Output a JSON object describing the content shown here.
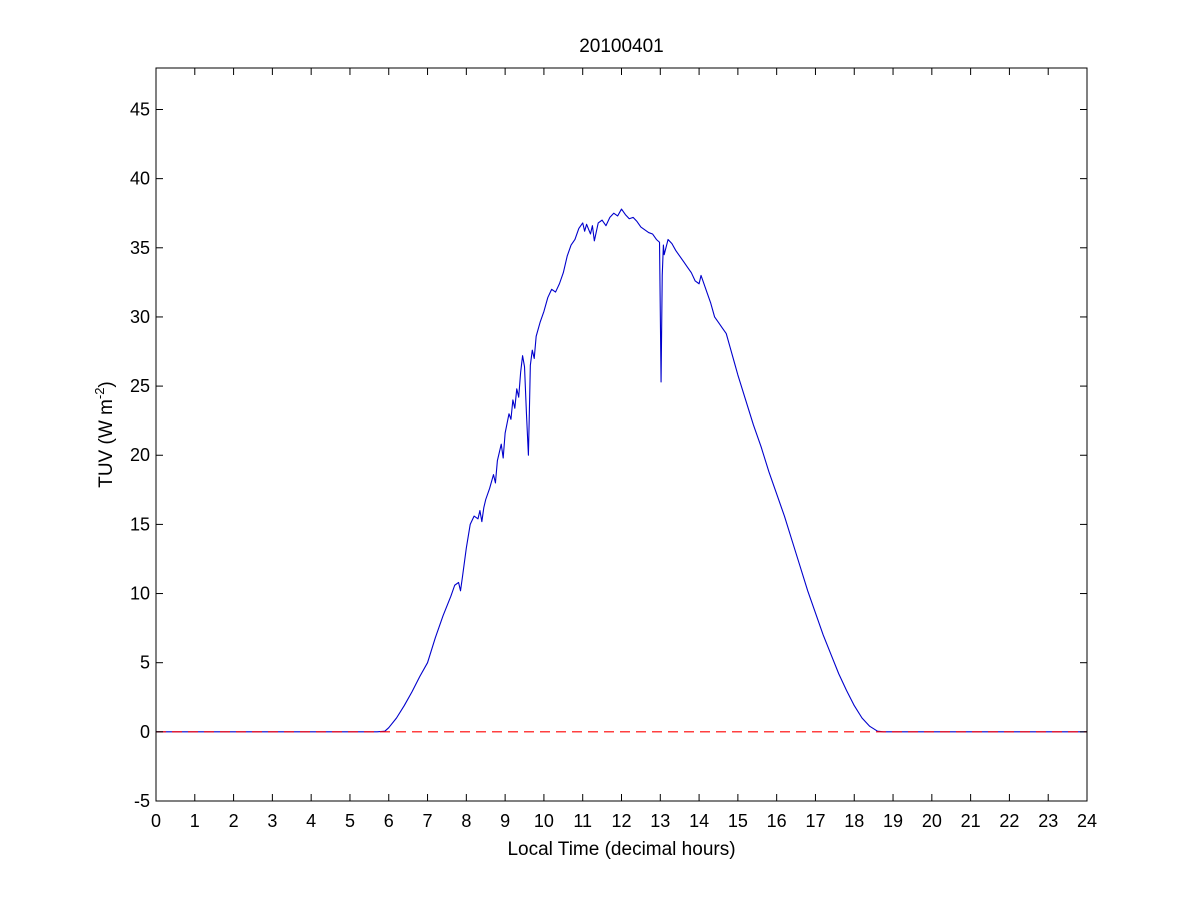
{
  "chart_data": {
    "type": "line",
    "title": "20100401",
    "xlabel": "Local Time (decimal hours)",
    "ylabel": "TUV (W m",
    "ylabel_superscript": "-2",
    "ylabel_suffix": ")",
    "xlim": [
      0,
      24
    ],
    "ylim": [
      -5,
      48
    ],
    "xticks": [
      0,
      1,
      2,
      3,
      4,
      5,
      6,
      7,
      8,
      9,
      10,
      11,
      12,
      13,
      14,
      15,
      16,
      17,
      18,
      19,
      20,
      21,
      22,
      23,
      24
    ],
    "yticks": [
      -5,
      0,
      5,
      10,
      15,
      20,
      25,
      30,
      35,
      40,
      45
    ],
    "grid": false,
    "series": [
      {
        "color": "#0000cc",
        "style": "solid",
        "points": [
          [
            0,
            0
          ],
          [
            5.7,
            0
          ],
          [
            5.9,
            0.05
          ],
          [
            6.0,
            0.3
          ],
          [
            6.2,
            1.0
          ],
          [
            6.4,
            1.9
          ],
          [
            6.6,
            2.9
          ],
          [
            6.8,
            4.0
          ],
          [
            7.0,
            5.0
          ],
          [
            7.2,
            6.8
          ],
          [
            7.4,
            8.4
          ],
          [
            7.6,
            9.8
          ],
          [
            7.7,
            10.6
          ],
          [
            7.8,
            10.8
          ],
          [
            7.85,
            10.2
          ],
          [
            7.9,
            11.2
          ],
          [
            8.0,
            13.3
          ],
          [
            8.1,
            15.0
          ],
          [
            8.2,
            15.6
          ],
          [
            8.3,
            15.4
          ],
          [
            8.35,
            16.0
          ],
          [
            8.4,
            15.2
          ],
          [
            8.45,
            16.2
          ],
          [
            8.5,
            16.8
          ],
          [
            8.6,
            17.6
          ],
          [
            8.7,
            18.6
          ],
          [
            8.75,
            18.0
          ],
          [
            8.8,
            19.6
          ],
          [
            8.9,
            20.8
          ],
          [
            8.95,
            19.8
          ],
          [
            9.0,
            21.6
          ],
          [
            9.1,
            23.0
          ],
          [
            9.15,
            22.6
          ],
          [
            9.2,
            24.0
          ],
          [
            9.25,
            23.4
          ],
          [
            9.3,
            24.8
          ],
          [
            9.35,
            24.2
          ],
          [
            9.4,
            26.0
          ],
          [
            9.45,
            27.2
          ],
          [
            9.5,
            26.4
          ],
          [
            9.55,
            23.0
          ],
          [
            9.6,
            20.0
          ],
          [
            9.62,
            22.5
          ],
          [
            9.65,
            26.5
          ],
          [
            9.7,
            27.6
          ],
          [
            9.75,
            27.0
          ],
          [
            9.8,
            28.6
          ],
          [
            9.9,
            29.6
          ],
          [
            10.0,
            30.4
          ],
          [
            10.1,
            31.4
          ],
          [
            10.2,
            32.0
          ],
          [
            10.3,
            31.8
          ],
          [
            10.4,
            32.4
          ],
          [
            10.5,
            33.2
          ],
          [
            10.6,
            34.4
          ],
          [
            10.7,
            35.2
          ],
          [
            10.8,
            35.6
          ],
          [
            10.9,
            36.4
          ],
          [
            11.0,
            36.8
          ],
          [
            11.05,
            36.2
          ],
          [
            11.1,
            36.7
          ],
          [
            11.2,
            36.0
          ],
          [
            11.25,
            36.6
          ],
          [
            11.3,
            35.5
          ],
          [
            11.4,
            36.8
          ],
          [
            11.5,
            37.0
          ],
          [
            11.6,
            36.6
          ],
          [
            11.7,
            37.2
          ],
          [
            11.8,
            37.5
          ],
          [
            11.9,
            37.3
          ],
          [
            12.0,
            37.8
          ],
          [
            12.1,
            37.4
          ],
          [
            12.2,
            37.1
          ],
          [
            12.3,
            37.2
          ],
          [
            12.4,
            36.9
          ],
          [
            12.5,
            36.5
          ],
          [
            12.6,
            36.3
          ],
          [
            12.7,
            36.1
          ],
          [
            12.8,
            36.0
          ],
          [
            12.9,
            35.6
          ],
          [
            12.98,
            35.4
          ],
          [
            13.02,
            25.3
          ],
          [
            13.05,
            33.0
          ],
          [
            13.08,
            35.2
          ],
          [
            13.1,
            34.5
          ],
          [
            13.2,
            35.6
          ],
          [
            13.3,
            35.3
          ],
          [
            13.4,
            34.8
          ],
          [
            13.5,
            34.4
          ],
          [
            13.6,
            34.0
          ],
          [
            13.7,
            33.6
          ],
          [
            13.8,
            33.2
          ],
          [
            13.9,
            32.6
          ],
          [
            14.0,
            32.4
          ],
          [
            14.05,
            33.0
          ],
          [
            14.1,
            32.6
          ],
          [
            14.2,
            31.8
          ],
          [
            14.3,
            31.0
          ],
          [
            14.4,
            30.0
          ],
          [
            14.5,
            29.6
          ],
          [
            14.6,
            29.2
          ],
          [
            14.7,
            28.8
          ],
          [
            14.8,
            27.8
          ],
          [
            14.9,
            26.8
          ],
          [
            15.0,
            25.8
          ],
          [
            15.2,
            24.0
          ],
          [
            15.4,
            22.2
          ],
          [
            15.6,
            20.6
          ],
          [
            15.8,
            18.8
          ],
          [
            16.0,
            17.2
          ],
          [
            16.2,
            15.6
          ],
          [
            16.4,
            13.8
          ],
          [
            16.6,
            12.0
          ],
          [
            16.8,
            10.2
          ],
          [
            17.0,
            8.6
          ],
          [
            17.2,
            7.0
          ],
          [
            17.4,
            5.6
          ],
          [
            17.6,
            4.2
          ],
          [
            17.8,
            3.0
          ],
          [
            18.0,
            1.9
          ],
          [
            18.2,
            1.0
          ],
          [
            18.4,
            0.4
          ],
          [
            18.6,
            0.05
          ],
          [
            18.75,
            0
          ],
          [
            24,
            0
          ]
        ]
      },
      {
        "color": "#ff0000",
        "style": "dashed",
        "points": [
          [
            0,
            0
          ],
          [
            24,
            0
          ]
        ]
      }
    ]
  }
}
